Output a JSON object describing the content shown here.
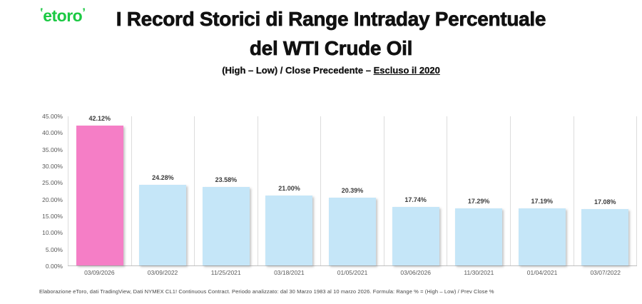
{
  "logo": {
    "text": "etoro",
    "color": "#1BC943"
  },
  "title": {
    "line1": "I Record Storici di Range Intraday Percentuale",
    "line2": "del WTI Crude Oil"
  },
  "subtitle": {
    "prefix": "(High – Low) / Close Precedente – ",
    "underlined": "Escluso il 2020"
  },
  "source_note": "Elaborazione eToro, dati TradingView, Dati NYMEX CL1! Continuous Contract. Periodo analizzato: dal 30 Marzo 1983 al 10 marzo 2026. Formula: Range % = (High – Low) / Prev Close %",
  "chart_data": {
    "type": "bar",
    "title": "I Record Storici di Range Intraday Percentuale del WTI Crude Oil",
    "subtitle": "(High – Low) / Close Precedente – Escluso il 2020",
    "categories": [
      "03/09/2026",
      "03/09/2022",
      "11/25/2021",
      "03/18/2021",
      "01/05/2021",
      "03/06/2026",
      "11/30/2021",
      "01/04/2021",
      "03/07/2022"
    ],
    "values": [
      42.12,
      24.28,
      23.58,
      21.0,
      20.39,
      17.74,
      17.29,
      17.19,
      17.08
    ],
    "value_labels": [
      "42.12%",
      "24.28%",
      "23.58%",
      "21.00%",
      "20.39%",
      "17.74%",
      "17.29%",
      "17.19%",
      "17.08%"
    ],
    "y_ticks": [
      "45.00%",
      "40.00%",
      "35.00%",
      "30.00%",
      "25.00%",
      "20.00%",
      "15.00%",
      "10.00%",
      "5.00%",
      "0.00%"
    ],
    "ylim": [
      0,
      45
    ],
    "xlabel": "",
    "ylabel": "",
    "grid": "vertical-category-separators",
    "legend": "none",
    "highlight_index": 0,
    "colors": {
      "bar": "#C5E6F8",
      "highlight": "#F57EC6",
      "gridline": "#DCDCDC",
      "axis_line": "#BFBFBF",
      "tick_text": "#595959",
      "value_text": "#3B3B3B"
    }
  }
}
